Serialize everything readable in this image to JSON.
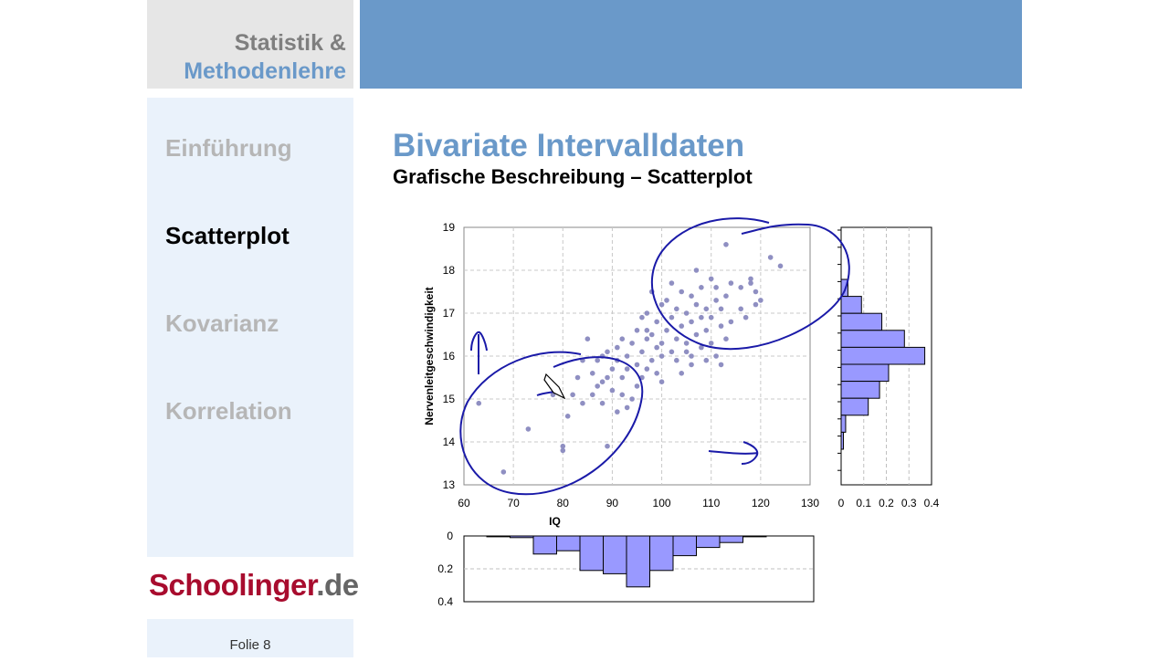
{
  "brand": {
    "line1": "Statistik &",
    "line2": "Methodenlehre"
  },
  "nav": {
    "items": [
      {
        "label": "Einführung",
        "active": false
      },
      {
        "label": "Scatterplot",
        "active": true
      },
      {
        "label": "Kovarianz",
        "active": false
      },
      {
        "label": "Korrelation",
        "active": false
      }
    ]
  },
  "logo": {
    "part1": "Schoolinger",
    "part2": ".de"
  },
  "footer": {
    "slide": "Folie 8"
  },
  "slide": {
    "title": "Bivariate Intervalldaten",
    "subtitle": "Grafische Beschreibung – Scatterplot"
  },
  "colors": {
    "accent": "#6a99c9",
    "brand_red": "#a80c2e",
    "nav_bg": "#eaf2fb",
    "points": "#8f8fc2",
    "bars": "#9999ff",
    "ink": "#1a1aa8"
  },
  "chart_data": [
    {
      "type": "scatter",
      "xlabel": "IQ",
      "ylabel": "Nervenleitgeschwindigkeit",
      "xlim": [
        60,
        130
      ],
      "ylim": [
        13,
        19
      ],
      "xticks": [
        "60",
        "70",
        "80",
        "90",
        "100",
        "110",
        "120",
        "130"
      ],
      "yticks": [
        "13",
        "14",
        "15",
        "16",
        "17",
        "18",
        "19"
      ],
      "grid": true,
      "points": [
        [
          63,
          14.9
        ],
        [
          68,
          13.3
        ],
        [
          73,
          14.3
        ],
        [
          78,
          15.1
        ],
        [
          80,
          13.8
        ],
        [
          80,
          13.9
        ],
        [
          81,
          14.6
        ],
        [
          82,
          15.1
        ],
        [
          83,
          15.5
        ],
        [
          84,
          15.9
        ],
        [
          84,
          14.9
        ],
        [
          85,
          16.4
        ],
        [
          86,
          15.1
        ],
        [
          86,
          15.6
        ],
        [
          87,
          15.3
        ],
        [
          87,
          15.9
        ],
        [
          88,
          14.9
        ],
        [
          88,
          16.0
        ],
        [
          89,
          13.9
        ],
        [
          89,
          15.5
        ],
        [
          89,
          16.1
        ],
        [
          90,
          15.2
        ],
        [
          90,
          15.7
        ],
        [
          91,
          14.7
        ],
        [
          91,
          15.9
        ],
        [
          91,
          16.2
        ],
        [
          92,
          15.5
        ],
        [
          92,
          15.1
        ],
        [
          93,
          16.0
        ],
        [
          93,
          14.8
        ],
        [
          93,
          15.7
        ],
        [
          94,
          16.3
        ],
        [
          95,
          15.3
        ],
        [
          95,
          15.8
        ],
        [
          95,
          16.6
        ],
        [
          96,
          16.1
        ],
        [
          96,
          15.5
        ],
        [
          96,
          16.9
        ],
        [
          97,
          16.4
        ],
        [
          97,
          15.7
        ],
        [
          97,
          17.0
        ],
        [
          98,
          15.9
        ],
        [
          98,
          16.5
        ],
        [
          98,
          17.5
        ],
        [
          99,
          16.2
        ],
        [
          99,
          15.6
        ],
        [
          99,
          16.8
        ],
        [
          100,
          16.0
        ],
        [
          100,
          17.2
        ],
        [
          100,
          15.4
        ],
        [
          101,
          16.6
        ],
        [
          101,
          17.3
        ],
        [
          102,
          16.1
        ],
        [
          102,
          16.9
        ],
        [
          102,
          17.7
        ],
        [
          103,
          16.4
        ],
        [
          103,
          15.9
        ],
        [
          103,
          17.1
        ],
        [
          104,
          16.7
        ],
        [
          104,
          17.5
        ],
        [
          104,
          15.6
        ],
        [
          105,
          16.3
        ],
        [
          105,
          17.0
        ],
        [
          105,
          16.1
        ],
        [
          106,
          17.4
        ],
        [
          106,
          16.8
        ],
        [
          106,
          15.8
        ],
        [
          107,
          16.5
        ],
        [
          107,
          17.2
        ],
        [
          107,
          18.0
        ],
        [
          108,
          16.9
        ],
        [
          108,
          16.2
        ],
        [
          108,
          17.6
        ],
        [
          109,
          15.9
        ],
        [
          109,
          17.1
        ],
        [
          109,
          16.6
        ],
        [
          110,
          17.8
        ],
        [
          110,
          16.3
        ],
        [
          110,
          16.9
        ],
        [
          111,
          17.3
        ],
        [
          111,
          16.0
        ],
        [
          111,
          17.6
        ],
        [
          112,
          16.7
        ],
        [
          112,
          17.1
        ],
        [
          113,
          17.4
        ],
        [
          113,
          16.4
        ],
        [
          114,
          16.8
        ],
        [
          114,
          17.7
        ],
        [
          116,
          17.1
        ],
        [
          116,
          17.6
        ],
        [
          117,
          16.9
        ],
        [
          118,
          17.7
        ],
        [
          119,
          17.2
        ],
        [
          119,
          17.5
        ],
        [
          120,
          17.3
        ],
        [
          118,
          17.8
        ],
        [
          122,
          18.3
        ],
        [
          124,
          18.1
        ],
        [
          113,
          18.6
        ],
        [
          97,
          16.6
        ],
        [
          92,
          16.4
        ],
        [
          94,
          15.0
        ],
        [
          100,
          16.3
        ],
        [
          106,
          16.0
        ],
        [
          112,
          15.8
        ],
        [
          88,
          15.4
        ]
      ]
    },
    {
      "type": "bar",
      "orientation": "horizontal",
      "categories": [
        "18",
        "17.5",
        "17",
        "16.5",
        "16",
        "15.5",
        "15",
        "14.5",
        "14",
        "13.5"
      ],
      "values": [
        0.03,
        0.09,
        0.18,
        0.28,
        0.37,
        0.21,
        0.17,
        0.12,
        0.02,
        0.01
      ],
      "xlim": [
        0,
        0.4
      ],
      "xticks": [
        "0",
        "0.1",
        "0.2",
        "0.3",
        "0.4"
      ]
    },
    {
      "type": "bar",
      "categories": [
        "65",
        "70",
        "75",
        "80",
        "85",
        "90",
        "95",
        "100",
        "105",
        "110",
        "115",
        "120"
      ],
      "values": [
        0.005,
        0.01,
        0.11,
        0.09,
        0.21,
        0.23,
        0.31,
        0.21,
        0.12,
        0.07,
        0.04,
        0.005
      ],
      "ylim": [
        0,
        0.4
      ],
      "yticks": [
        "0",
        "0.2",
        "0.4"
      ]
    }
  ]
}
